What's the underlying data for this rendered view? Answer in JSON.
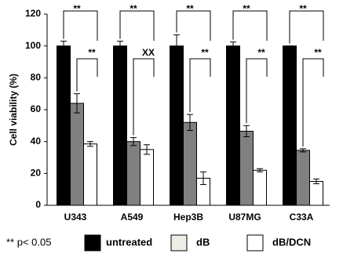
{
  "chart_data": {
    "type": "bar",
    "y_label": "Cell viability  (%)",
    "categories": [
      "U343",
      "A549",
      "Hep3B",
      "U87MG",
      "C33A"
    ],
    "series": [
      {
        "name": "untreated",
        "color": "#000000",
        "legend_color": "#000000",
        "values": [
          100,
          100,
          100,
          100,
          100
        ],
        "errors": [
          3,
          3,
          7,
          2.5,
          0
        ]
      },
      {
        "name": "dB",
        "color": "#808080",
        "legend_color": "#eeede5",
        "values": [
          64,
          40,
          52,
          46.5,
          34.5
        ],
        "errors": [
          6,
          2.5,
          5,
          3.5,
          1
        ]
      },
      {
        "name": "dB/DCN",
        "color": "#ffffff",
        "legend_color": "#ffffff",
        "values": [
          38.5,
          35,
          17,
          22,
          15
        ],
        "errors": [
          1.5,
          3,
          4,
          1,
          1.5
        ]
      }
    ],
    "significance": [
      [
        "**",
        "**"
      ],
      [
        "**",
        "XX"
      ],
      [
        "**",
        "**"
      ],
      [
        "**",
        "**"
      ],
      [
        "**",
        "**"
      ]
    ],
    "footnote": "** p< 0.05",
    "ylim": [
      0,
      120
    ],
    "yticks": [
      0,
      20,
      40,
      60,
      80,
      100,
      120
    ],
    "grid": false
  }
}
